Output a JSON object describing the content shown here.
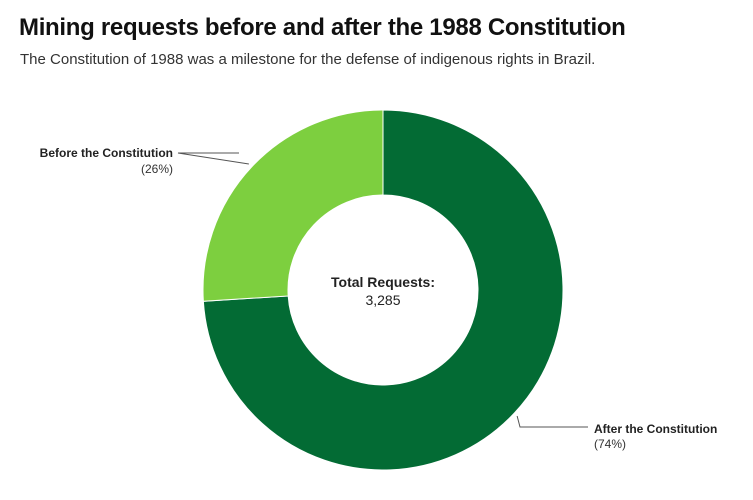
{
  "chart_data": {
    "type": "pie",
    "title": "Mining requests before and after the 1988 Constitution",
    "subtitle": "The Constitution of 1988 was a milestone for the defense of indigenous rights in Brazil.",
    "donut": true,
    "center_label": "Total Requests:",
    "center_value": "3,285",
    "slices": [
      {
        "label": "After the Constitution",
        "percent_label": "(74%)",
        "value": 74,
        "color": "#036B34"
      },
      {
        "label": "Before the Constitution",
        "percent_label": "(26%)",
        "value": 26,
        "color": "#7DCF3F"
      }
    ]
  }
}
